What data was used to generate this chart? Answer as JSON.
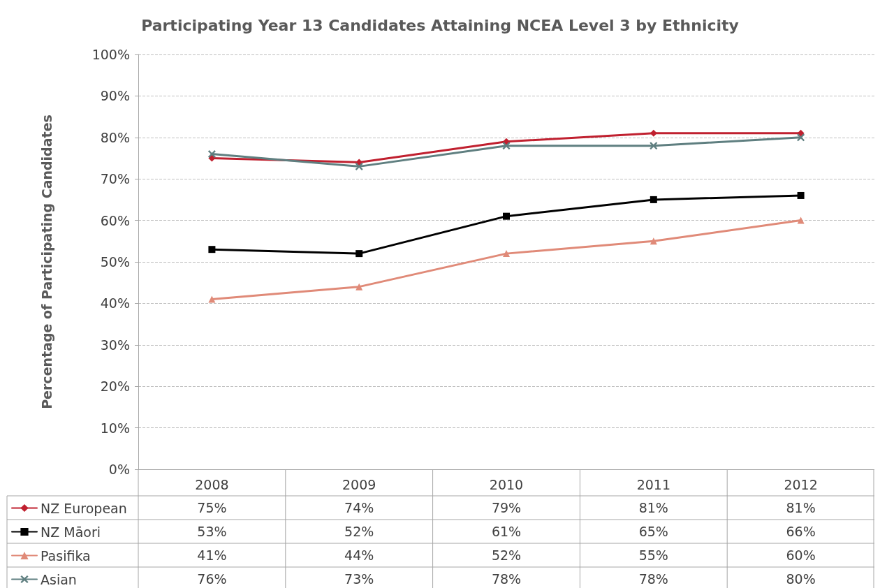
{
  "chart_data": {
    "type": "line",
    "title": "Participating Year 13 Candidates Attaining NCEA Level 3 by Ethnicity",
    "ylabel": "Percentage of Participating Candidates",
    "categories": [
      "2008",
      "2009",
      "2010",
      "2011",
      "2012"
    ],
    "series": [
      {
        "name": "NZ European",
        "color": "#c0202f",
        "marker": "diamond",
        "values": [
          75,
          74,
          79,
          81,
          81
        ],
        "value_labels": [
          "75%",
          "74%",
          "79%",
          "81%",
          "81%"
        ]
      },
      {
        "name": "NZ Māori",
        "color": "#000000",
        "marker": "square",
        "values": [
          53,
          52,
          61,
          65,
          66
        ],
        "value_labels": [
          "53%",
          "52%",
          "61%",
          "65%",
          "66%"
        ]
      },
      {
        "name": "Pasifika",
        "color": "#e08a78",
        "marker": "triangle",
        "values": [
          41,
          44,
          52,
          55,
          60
        ],
        "value_labels": [
          "41%",
          "44%",
          "52%",
          "55%",
          "60%"
        ]
      },
      {
        "name": "Asian",
        "color": "#5f7f80",
        "marker": "cross",
        "values": [
          76,
          73,
          78,
          78,
          80
        ],
        "value_labels": [
          "76%",
          "73%",
          "78%",
          "78%",
          "80%"
        ]
      }
    ],
    "ylim": [
      0,
      100
    ],
    "yticks": [
      {
        "value": 0,
        "label": "0%"
      },
      {
        "value": 10,
        "label": "10%"
      },
      {
        "value": 20,
        "label": "20%"
      },
      {
        "value": 30,
        "label": "30%"
      },
      {
        "value": 40,
        "label": "40%"
      },
      {
        "value": 50,
        "label": "50%"
      },
      {
        "value": 60,
        "label": "60%"
      },
      {
        "value": 70,
        "label": "70%"
      },
      {
        "value": 80,
        "label": "80%"
      },
      {
        "value": 90,
        "label": "90%"
      },
      {
        "value": 100,
        "label": "100%"
      }
    ],
    "grid": "y",
    "legend": "bottom left",
    "line_style": "solid"
  }
}
